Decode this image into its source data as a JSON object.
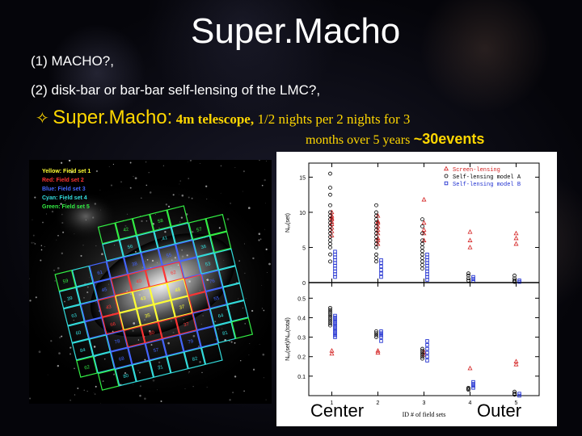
{
  "slide": {
    "title": "Super.Macho",
    "item1": "(1) MACHO?,",
    "item2": "(2) disk-bar or bar-bar self-lensing of the LMC?,",
    "item3_symbol": "✧",
    "item3_head": "Super.Macho:",
    "item3_telescope": "4m telescope,",
    "item3_rest": "1/2 nights per 2 nights  for 3",
    "item3_months": "months over 5 years",
    "item3_events": "~30events"
  },
  "lmc_image": {
    "legend": [
      {
        "text": "Yellow: Field set 1",
        "color": "#ffff33"
      },
      {
        "text": "Red: Field set 2",
        "color": "#ff3333"
      },
      {
        "text": "Blue: Field set 3",
        "color": "#4466ff"
      },
      {
        "text": "Cyan: Field set 4",
        "color": "#33dddd"
      },
      {
        "text": "Green: Field set 5",
        "color": "#33ee44"
      }
    ],
    "field_labels": [
      "42",
      "58",
      "56",
      "41",
      "57",
      "59",
      "61",
      "38",
      "55",
      "36",
      "39",
      "45",
      "40",
      "62",
      "53",
      "63",
      "43",
      "43",
      "48",
      "76",
      "60",
      "66",
      "35",
      "37",
      "55",
      "84",
      "78",
      "80",
      "37",
      "64",
      "62",
      "68",
      "57",
      "79",
      "81",
      "80",
      "31",
      "82",
      "65",
      "83",
      "70",
      "69",
      "71",
      "72",
      "58",
      "99",
      "95",
      "97"
    ]
  },
  "chart_data": [
    {
      "type": "scatter",
      "ylabel": "Nₑᵥ(set)",
      "ylim": [
        0,
        17
      ],
      "yticks": [
        0,
        5,
        10,
        15
      ],
      "xticks": [
        1,
        2,
        3,
        4,
        5
      ],
      "legend": [
        {
          "name": "Screen-lensing",
          "marker": "triangle",
          "color": "#d42020"
        },
        {
          "name": "Self-lensing model A",
          "marker": "circle",
          "color": "#000000"
        },
        {
          "name": "Self-lensing model B",
          "marker": "square",
          "color": "#2030d0"
        }
      ],
      "series": [
        {
          "name": "Screen-lensing",
          "points": [
            [
              1,
              6.7
            ],
            [
              1,
              7.3
            ],
            [
              1,
              7.8
            ],
            [
              1,
              8.3
            ],
            [
              1,
              8.6
            ],
            [
              1,
              9.0
            ],
            [
              1,
              9.2
            ],
            [
              1,
              9.5
            ],
            [
              1,
              10.0
            ],
            [
              2,
              5.5
            ],
            [
              2,
              6.0
            ],
            [
              2,
              6.3
            ],
            [
              2,
              7.0
            ],
            [
              2,
              7.5
            ],
            [
              2,
              8.0
            ],
            [
              2,
              8.5
            ],
            [
              2,
              8.7
            ],
            [
              2,
              9.5
            ],
            [
              3,
              6.0
            ],
            [
              3,
              7.0
            ],
            [
              3,
              7.5
            ],
            [
              3,
              8.5
            ],
            [
              3,
              11.8
            ],
            [
              4,
              5.0
            ],
            [
              4,
              6.0
            ],
            [
              4,
              7.2
            ],
            [
              5,
              5.5
            ],
            [
              5,
              6.3
            ],
            [
              5,
              7.0
            ]
          ]
        },
        {
          "name": "Self-lensing model A",
          "points": [
            [
              1,
              3.0
            ],
            [
              1,
              4.0
            ],
            [
              1,
              5.0
            ],
            [
              1,
              5.5
            ],
            [
              1,
              6.0
            ],
            [
              1,
              6.5
            ],
            [
              1,
              7.0
            ],
            [
              1,
              7.5
            ],
            [
              1,
              8.0
            ],
            [
              1,
              8.5
            ],
            [
              1,
              9.0
            ],
            [
              1,
              9.5
            ],
            [
              1,
              10.0
            ],
            [
              1,
              11.0
            ],
            [
              1,
              12.5
            ],
            [
              1,
              13.5
            ],
            [
              1,
              15.5
            ],
            [
              2,
              3.0
            ],
            [
              2,
              3.5
            ],
            [
              2,
              4.0
            ],
            [
              2,
              5.0
            ],
            [
              2,
              5.5
            ],
            [
              2,
              6.0
            ],
            [
              2,
              6.5
            ],
            [
              2,
              7.0
            ],
            [
              2,
              7.5
            ],
            [
              2,
              8.0
            ],
            [
              2,
              8.5
            ],
            [
              2,
              9.0
            ],
            [
              2,
              9.5
            ],
            [
              2,
              10.0
            ],
            [
              2,
              11.0
            ],
            [
              3,
              2.0
            ],
            [
              3,
              2.5
            ],
            [
              3,
              3.0
            ],
            [
              3,
              3.5
            ],
            [
              3,
              4.0
            ],
            [
              3,
              4.5
            ],
            [
              3,
              5.0
            ],
            [
              3,
              5.5
            ],
            [
              3,
              6.0
            ],
            [
              3,
              7.0
            ],
            [
              3,
              8.0
            ],
            [
              3,
              9.0
            ],
            [
              4,
              0.3
            ],
            [
              4,
              0.6
            ],
            [
              4,
              1.0
            ],
            [
              4,
              1.3
            ],
            [
              5,
              0.1
            ],
            [
              5,
              0.3
            ],
            [
              5,
              0.6
            ],
            [
              5,
              1.0
            ]
          ]
        },
        {
          "name": "Self-lensing model B",
          "points": [
            [
              1,
              0.8
            ],
            [
              1,
              1.2
            ],
            [
              1,
              1.6
            ],
            [
              1,
              2.0
            ],
            [
              1,
              2.4
            ],
            [
              1,
              2.8
            ],
            [
              1,
              3.2
            ],
            [
              1,
              3.6
            ],
            [
              1,
              4.0
            ],
            [
              1,
              4.4
            ],
            [
              2,
              0.8
            ],
            [
              2,
              1.3
            ],
            [
              2,
              1.8
            ],
            [
              2,
              2.3
            ],
            [
              2,
              2.8
            ],
            [
              2,
              3.2
            ],
            [
              3,
              0.4
            ],
            [
              3,
              0.8
            ],
            [
              3,
              1.2
            ],
            [
              3,
              1.6
            ],
            [
              3,
              2.0
            ],
            [
              3,
              2.4
            ],
            [
              3,
              2.8
            ],
            [
              3,
              3.2
            ],
            [
              3,
              3.6
            ],
            [
              3,
              4.0
            ],
            [
              4,
              0.2
            ],
            [
              4,
              0.5
            ],
            [
              4,
              0.8
            ],
            [
              5,
              0.1
            ],
            [
              5,
              0.3
            ]
          ]
        }
      ]
    },
    {
      "type": "scatter",
      "ylabel": "Nₑᵥ(set)/Nₑᵥ(total)",
      "xlabel": "ID # of field sets",
      "ylim": [
        0,
        0.58
      ],
      "yticks": [
        0.1,
        0.2,
        0.3,
        0.4,
        0.5
      ],
      "xticks": [
        1,
        2,
        3,
        4,
        5
      ],
      "series": [
        {
          "name": "Screen-lensing",
          "points": [
            [
              1,
              0.215
            ],
            [
              1,
              0.23
            ],
            [
              2,
              0.22
            ],
            [
              2,
              0.23
            ],
            [
              3,
              0.21
            ],
            [
              3,
              0.225
            ],
            [
              4,
              0.14
            ],
            [
              5,
              0.16
            ],
            [
              5,
              0.175
            ]
          ]
        },
        {
          "name": "Self-lensing model A",
          "points": [
            [
              1,
              0.36
            ],
            [
              1,
              0.37
            ],
            [
              1,
              0.38
            ],
            [
              1,
              0.39
            ],
            [
              1,
              0.4
            ],
            [
              1,
              0.41
            ],
            [
              1,
              0.42
            ],
            [
              1,
              0.43
            ],
            [
              1,
              0.44
            ],
            [
              1,
              0.45
            ],
            [
              2,
              0.3
            ],
            [
              2,
              0.31
            ],
            [
              2,
              0.32
            ],
            [
              2,
              0.33
            ],
            [
              3,
              0.19
            ],
            [
              3,
              0.2
            ],
            [
              3,
              0.21
            ],
            [
              3,
              0.22
            ],
            [
              3,
              0.23
            ],
            [
              3,
              0.24
            ],
            [
              4,
              0.03
            ],
            [
              4,
              0.035
            ],
            [
              4,
              0.04
            ],
            [
              5,
              0.005
            ],
            [
              5,
              0.01
            ],
            [
              5,
              0.02
            ]
          ]
        },
        {
          "name": "Self-lensing model B",
          "points": [
            [
              1,
              0.3
            ],
            [
              1,
              0.31
            ],
            [
              1,
              0.32
            ],
            [
              1,
              0.33
            ],
            [
              1,
              0.34
            ],
            [
              1,
              0.35
            ],
            [
              1,
              0.36
            ],
            [
              1,
              0.37
            ],
            [
              1,
              0.38
            ],
            [
              1,
              0.39
            ],
            [
              1,
              0.4
            ],
            [
              1,
              0.41
            ],
            [
              2,
              0.28
            ],
            [
              2,
              0.3
            ],
            [
              2,
              0.31
            ],
            [
              2,
              0.32
            ],
            [
              2,
              0.33
            ],
            [
              3,
              0.18
            ],
            [
              3,
              0.2
            ],
            [
              3,
              0.22
            ],
            [
              3,
              0.24
            ],
            [
              3,
              0.26
            ],
            [
              3,
              0.28
            ],
            [
              4,
              0.04
            ],
            [
              4,
              0.05
            ],
            [
              4,
              0.06
            ],
            [
              4,
              0.07
            ],
            [
              5,
              0.0
            ],
            [
              5,
              0.01
            ]
          ]
        }
      ]
    }
  ],
  "plot_labels": {
    "center": "Center",
    "outer": "Outer"
  }
}
